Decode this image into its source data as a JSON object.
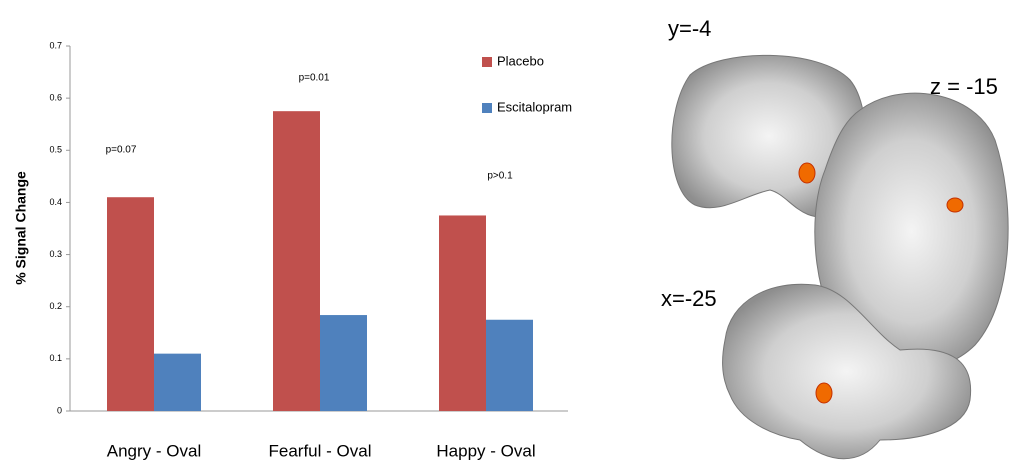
{
  "chart_data": {
    "type": "bar",
    "y_label": "% Signal Change",
    "categories": [
      "Angry - Oval",
      "Fearful - Oval",
      "Happy - Oval"
    ],
    "series": [
      {
        "name": "Placebo",
        "color": "#c0504d",
        "values": [
          0.41,
          0.575,
          0.375
        ]
      },
      {
        "name": "Escitalopram",
        "color": "#4f81bd",
        "values": [
          0.11,
          0.184,
          0.175
        ]
      }
    ],
    "annotations": [
      "p=0.07",
      "p=0.01",
      "p>0.1"
    ],
    "ylim": [
      0,
      0.7
    ],
    "yticks": [
      0,
      0.1,
      0.2,
      0.3,
      0.4,
      0.5,
      0.6,
      0.7
    ],
    "legend": "top-right"
  },
  "images": [
    {
      "label": "y=-4"
    },
    {
      "label": "z = -15"
    },
    {
      "label": "x=-25"
    }
  ]
}
